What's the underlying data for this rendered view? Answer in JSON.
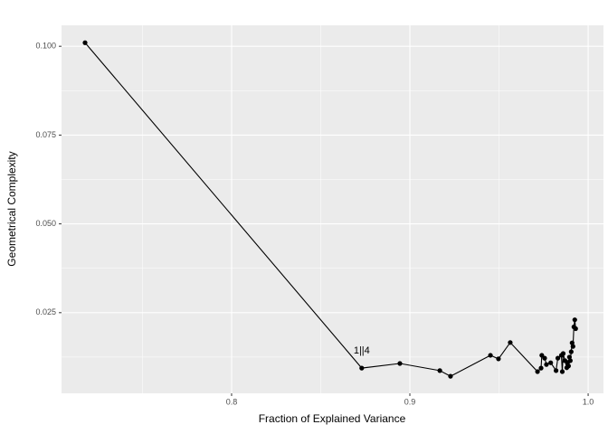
{
  "chart_data": {
    "type": "line",
    "x_label": "Fraction of Explained Variance",
    "y_label": "Geometrical Complexity",
    "annotation": "1||4",
    "series": [
      {
        "color": "#000000",
        "x": [
          0.7178,
          0.873,
          0.8944,
          0.9168,
          0.9228,
          0.9452,
          0.9497,
          0.9563,
          0.9716,
          0.9736,
          0.974,
          0.9756,
          0.9766,
          0.979,
          0.982,
          0.983,
          0.985,
          0.9855,
          0.986,
          0.987,
          0.988,
          0.9885,
          0.989,
          0.9895,
          0.99,
          0.9905,
          0.991,
          0.9915,
          0.992,
          0.9925,
          0.993
        ],
        "values": [
          0.101,
          0.0094,
          0.0107,
          0.0087,
          0.0071,
          0.013,
          0.012,
          0.0166,
          0.0084,
          0.0094,
          0.013,
          0.0122,
          0.0104,
          0.0109,
          0.0087,
          0.0122,
          0.013,
          0.0084,
          0.0135,
          0.0115,
          0.0095,
          0.011,
          0.01,
          0.0125,
          0.0115,
          0.014,
          0.0165,
          0.0155,
          0.021,
          0.023,
          0.0205
        ]
      }
    ],
    "xlim": [
      0.7046,
      1.0086
    ],
    "ylim": [
      0.0023,
      0.1059
    ],
    "xticks": [
      0.8,
      0.9,
      {
        "value": 1.0,
        "label": "1.0"
      }
    ],
    "yticks": [
      {
        "value": 0.025,
        "label": "0.025"
      },
      {
        "value": 0.05,
        "label": "0.050"
      },
      {
        "value": 0.075,
        "label": "0.075"
      },
      {
        "value": 0.1,
        "label": "0.100"
      }
    ],
    "grid": true
  }
}
